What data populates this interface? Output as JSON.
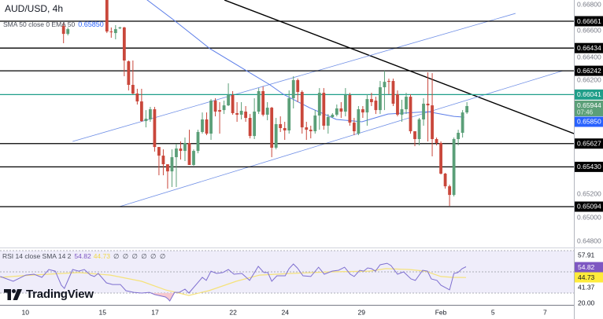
{
  "header": {
    "symbol_title": "AUD/USD, 4h",
    "ma_legend_label": "SMA 50 close 0 EMA 50",
    "ma_legend_value": "0.65850",
    "rsi_legend_label": "RSI 14 close SMA 14 2",
    "rsi_legend_value": "54.82",
    "rsi_legend_sma_value": "44.73",
    "rsi_legend_extras": "∅ ∅ ∅ ∅ ∅ ∅"
  },
  "branding": {
    "logo_text": "TradingView"
  },
  "colors": {
    "up": "#5b9f78",
    "down": "#c9473b",
    "ma": "#5b7de8",
    "channel": "#6f8fe6",
    "trendline": "#000000",
    "level": "#000000",
    "level_teal": "#1f9e89",
    "rsi_line": "#7e6fd0",
    "rsi_sma": "#f5e27a",
    "rsi_band": "#efedfa",
    "current_price": "#5b9f78",
    "ma_badge": "#2962ff",
    "rsi_badge": "#7e57c2",
    "rsi_sma_badge": "#ffeb3b"
  },
  "chart_data": {
    "type": "candlestick",
    "title": "AUD/USD, 4h",
    "ylim": [
      0.6475,
      0.6684
    ],
    "price_ticks": [
      "0.66800",
      "0.66600",
      "0.66400",
      "0.66200",
      "0.65200",
      "0.65000",
      "0.64800"
    ],
    "time_ticks": [
      {
        "bar": -8.8,
        "label": "10"
      },
      {
        "bar": 9,
        "label": "15"
      },
      {
        "bar": 21.1,
        "label": "17"
      },
      {
        "bar": 39.1,
        "label": "22"
      },
      {
        "bar": 51.1,
        "label": "24"
      },
      {
        "bar": 68.7,
        "label": "29"
      },
      {
        "bar": 87,
        "label": "Feb"
      },
      {
        "bar": 99,
        "label": "5"
      },
      {
        "bar": 111,
        "label": "7"
      }
    ],
    "candles_ohlc": [
      [
        0.66621,
        0.66647,
        0.66475,
        0.66554
      ],
      [
        0.66554,
        0.66608,
        0.66541,
        0.66594
      ],
      null,
      null,
      null,
      null,
      null,
      null,
      null,
      null,
      [
        0.6694,
        0.66973,
        0.66561,
        0.66574
      ],
      [
        0.66574,
        0.66608,
        0.66521,
        0.66568
      ],
      [
        0.66561,
        0.66628,
        0.66508,
        0.66594
      ],
      [
        0.66601,
        0.66615,
        0.66594,
        0.66608
      ],
      [
        0.66608,
        0.66614,
        0.66196,
        0.66329
      ],
      [
        0.66322,
        0.66329,
        0.66076,
        0.66123
      ],
      [
        0.66123,
        0.66329,
        0.66043,
        0.6605
      ],
      [
        0.6605,
        0.6609,
        0.65957,
        0.65983
      ],
      [
        0.65983,
        0.6609,
        0.65811,
        0.65817
      ],
      [
        0.65817,
        0.6591,
        0.65764,
        0.65837
      ],
      [
        0.65831,
        0.65937,
        0.65811,
        0.65917
      ],
      [
        0.65917,
        0.65937,
        0.65559,
        0.65598
      ],
      [
        0.65598,
        0.65598,
        0.65359,
        0.65525
      ],
      [
        0.65525,
        0.65578,
        0.65359,
        0.65452
      ],
      [
        0.65452,
        0.65452,
        0.65246,
        0.65392
      ],
      [
        0.65392,
        0.65578,
        0.6526,
        0.65512
      ],
      [
        0.65512,
        0.65625,
        0.6526,
        0.65585
      ],
      [
        0.65585,
        0.65645,
        0.65492,
        0.65565
      ],
      [
        0.65565,
        0.65678,
        0.65479,
        0.65632
      ],
      [
        0.65632,
        0.65744,
        0.65446,
        0.65446
      ],
      [
        0.65446,
        0.65578,
        0.65439,
        0.65565
      ],
      [
        0.65565,
        0.65744,
        0.65545,
        0.65725
      ],
      [
        0.65725,
        0.6589,
        0.65711,
        0.65831
      ],
      [
        0.65831,
        0.6589,
        0.65698,
        0.65711
      ],
      [
        0.65711,
        0.66003,
        0.65658,
        0.6599
      ],
      [
        0.6599,
        0.6601,
        0.65857,
        0.65897
      ],
      [
        0.6591,
        0.65977,
        0.65711,
        0.65897
      ],
      [
        0.6591,
        0.6599,
        0.65877,
        0.6595
      ],
      [
        0.6595,
        0.66136,
        0.65944,
        0.66037
      ],
      [
        0.66037,
        0.6607,
        0.65871,
        0.65884
      ],
      [
        0.65884,
        0.65977,
        0.65811,
        0.65871
      ],
      [
        0.65871,
        0.65977,
        0.65831,
        0.65904
      ],
      [
        0.65897,
        0.65944,
        0.65811,
        0.65844
      ],
      [
        0.65844,
        0.65877,
        0.65671,
        0.65691
      ],
      [
        0.65691,
        0.6601,
        0.65665,
        0.65897
      ],
      [
        0.65897,
        0.66096,
        0.65877,
        0.6607
      ],
      [
        0.6607,
        0.6611,
        0.65857,
        0.65871
      ],
      [
        0.65871,
        0.65977,
        0.65824,
        0.6593
      ],
      [
        0.6593,
        0.65937,
        0.65512,
        0.65592
      ],
      [
        0.65592,
        0.65844,
        0.65578,
        0.65791
      ],
      [
        0.65791,
        0.65857,
        0.65725,
        0.65758
      ],
      [
        0.65758,
        0.65811,
        0.65658,
        0.65738
      ],
      [
        0.65738,
        0.66076,
        0.65711,
        0.6601
      ],
      [
        0.6601,
        0.66196,
        0.65924,
        0.66163
      ],
      [
        0.66163,
        0.66176,
        0.65977,
        0.66063
      ],
      [
        0.66063,
        0.66076,
        0.65711,
        0.65764
      ],
      [
        0.65764,
        0.65811,
        0.65658,
        0.65744
      ],
      [
        0.65744,
        0.65778,
        0.65671,
        0.65731
      ],
      [
        0.65731,
        0.6591,
        0.65711,
        0.65864
      ],
      [
        0.65864,
        0.66096,
        0.65744,
        0.66056
      ],
      [
        0.66056,
        0.66096,
        0.65744,
        0.65778
      ],
      [
        0.65778,
        0.65877,
        0.65711,
        0.65851
      ],
      [
        0.65851,
        0.65884,
        0.65844,
        0.65871
      ],
      [
        0.65871,
        0.65957,
        0.65857,
        0.65924
      ],
      [
        0.65924,
        0.65977,
        0.65844,
        0.65897
      ],
      [
        0.65897,
        0.66096,
        0.65857,
        0.66037
      ],
      [
        0.66037,
        0.66056,
        0.65778,
        0.65804
      ],
      [
        0.65804,
        0.65844,
        0.65698,
        0.65731
      ],
      [
        0.65711,
        0.65944,
        0.65698,
        0.65917
      ],
      [
        0.65917,
        0.65944,
        0.65844,
        0.6589
      ],
      [
        0.6589,
        0.66043,
        0.65778,
        0.66003
      ],
      [
        0.66003,
        0.66056,
        0.65944,
        0.65977
      ],
      [
        0.6599,
        0.66023,
        0.65877,
        0.6591
      ],
      [
        0.6591,
        0.66156,
        0.65877,
        0.66103
      ],
      [
        0.66103,
        0.66242,
        0.6591,
        0.66149
      ],
      [
        0.66156,
        0.66176,
        0.66043,
        0.66149
      ],
      [
        0.66156,
        0.66176,
        0.65944,
        0.65964
      ],
      [
        0.66043,
        0.66076,
        0.65857,
        0.65871
      ],
      [
        0.65871,
        0.65997,
        0.65811,
        0.65917
      ],
      [
        0.65917,
        0.66056,
        0.65877,
        0.66023
      ],
      [
        0.66023,
        0.66043,
        0.65711,
        0.65731
      ],
      [
        0.65731,
        0.65731,
        0.65605,
        0.65665
      ],
      [
        0.65665,
        0.65844,
        0.65612,
        0.65831
      ],
      [
        0.65831,
        0.6601,
        0.65778,
        0.65964
      ],
      [
        0.65964,
        0.66229,
        0.65645,
        0.6595
      ],
      [
        0.6595,
        0.66222,
        0.65519,
        0.65665
      ],
      [
        0.65665,
        0.65678,
        0.65612,
        0.65632
      ],
      [
        0.65632,
        0.65645,
        0.65366,
        0.65373
      ],
      [
        0.65373,
        0.65379,
        0.65246,
        0.65266
      ],
      [
        0.65266,
        0.6528,
        0.651,
        0.65193
      ],
      [
        0.65193,
        0.65678,
        0.6518,
        0.65665
      ],
      [
        0.65665,
        0.65744,
        0.65612,
        0.65718
      ],
      [
        0.65718,
        0.6591,
        0.65678,
        0.6589
      ],
      [
        0.6589,
        0.65977,
        0.65877,
        0.65944
      ]
    ],
    "current_price": {
      "label": "0.65944",
      "countdown": "07:46"
    },
    "levels": [
      {
        "price": 0.66661,
        "label": "0.66661",
        "style": "black"
      },
      {
        "price": 0.66434,
        "label": "0.66434",
        "style": "black"
      },
      {
        "price": 0.66242,
        "label": "0.66242",
        "style": "black"
      },
      {
        "price": 0.66041,
        "label": "0.66041",
        "style": "teal"
      },
      {
        "price": 0.65627,
        "label": "0.65627",
        "style": "black"
      },
      {
        "price": 0.6543,
        "label": "0.65430",
        "style": "black"
      },
      {
        "price": 0.65094,
        "label": "0.65094",
        "style": "black"
      }
    ],
    "trendlines": [
      {
        "kind": "resistance",
        "from": [
          37.1,
          0.6684
        ],
        "to": [
          117.7,
          0.65711
        ]
      },
      {
        "kind": "channel-upper",
        "from": [
          2.1,
          0.65645
        ],
        "to": [
          104.2,
          0.66727
        ]
      },
      {
        "kind": "channel-lower",
        "from": [
          12.9,
          0.65094
        ],
        "to": [
          115.1,
          0.66242
        ]
      }
    ],
    "moving_average": {
      "label": "SMA 50 close 0 EMA 50",
      "value_label": "0.65850",
      "points": [
        [
          17.5,
          0.669
        ],
        [
          19.3,
          0.6684
        ],
        [
          25.3,
          0.66674
        ],
        [
          33.8,
          0.66428
        ],
        [
          42.2,
          0.66242
        ],
        [
          47.6,
          0.66123
        ],
        [
          50.7,
          0.66043
        ],
        [
          56.7,
          0.6593
        ],
        [
          62.9,
          0.65831
        ],
        [
          68.8,
          0.65811
        ],
        [
          74.8,
          0.65877
        ],
        [
          84,
          0.65897
        ],
        [
          87,
          0.65877
        ],
        [
          90,
          0.65857
        ],
        [
          92.4,
          0.6585
        ]
      ]
    },
    "rsi": {
      "label": "RSI 14 close SMA 14 2",
      "value_label": "54.82",
      "sma_value_label": "44.73",
      "ylim": [
        18.9,
        73
      ],
      "band_levels": [
        70,
        50,
        30
      ],
      "axis_labels": [
        "57.91",
        "54.82",
        "44.73",
        "41.37",
        "20.00"
      ],
      "points": [
        [
          -14.6,
          45.6
        ],
        [
          -11.6,
          41.1
        ],
        [
          -8.7,
          47.0
        ],
        [
          -6.8,
          47.8
        ],
        [
          -5.0,
          44.8
        ],
        [
          -3.4,
          52.2
        ],
        [
          -1.9,
          50.7
        ],
        [
          -0.5,
          37.4
        ],
        [
          0.2,
          34.4
        ],
        [
          2.1,
          52.2
        ],
        [
          3.5,
          50.7
        ],
        [
          4.8,
          52.2
        ],
        [
          6.2,
          47.0
        ],
        [
          7.1,
          45.6
        ],
        [
          8.0,
          48.5
        ],
        [
          9.9,
          39.6
        ],
        [
          11.3,
          38.1
        ],
        [
          13.1,
          38.1
        ],
        [
          14.4,
          32.2
        ],
        [
          16.2,
          30.7
        ],
        [
          18.0,
          30.0
        ],
        [
          19.8,
          30.7
        ],
        [
          21.1,
          28.5
        ],
        [
          23.5,
          26.3
        ],
        [
          24.0,
          24.8
        ],
        [
          24.5,
          22.6
        ],
        [
          25.6,
          30.7
        ],
        [
          26.7,
          30.7
        ],
        [
          28.0,
          33.7
        ],
        [
          28.9,
          30.0
        ],
        [
          32.0,
          44.8
        ],
        [
          32.9,
          41.9
        ],
        [
          34.0,
          50.7
        ],
        [
          35.3,
          48.5
        ],
        [
          36.7,
          49.3
        ],
        [
          38.0,
          52.2
        ],
        [
          39.3,
          47.8
        ],
        [
          41.1,
          48.5
        ],
        [
          42.9,
          41.9
        ],
        [
          44.9,
          55.2
        ],
        [
          46.2,
          49.3
        ],
        [
          47.1,
          49.3
        ],
        [
          48.0,
          41.1
        ],
        [
          49.2,
          46.3
        ],
        [
          51.1,
          46.3
        ],
        [
          52.0,
          53.0
        ],
        [
          53.0,
          57.4
        ],
        [
          53.9,
          53.7
        ],
        [
          55.2,
          46.3
        ],
        [
          57.0,
          45.6
        ],
        [
          58.8,
          54.4
        ],
        [
          60.1,
          47.8
        ],
        [
          61.9,
          50.7
        ],
        [
          63.4,
          51.5
        ],
        [
          64.8,
          54.4
        ],
        [
          66.1,
          47.8
        ],
        [
          67.0,
          45.6
        ],
        [
          68.3,
          51.5
        ],
        [
          69.2,
          50.7
        ],
        [
          70.1,
          53.7
        ],
        [
          71.0,
          53.0
        ],
        [
          71.9,
          50.7
        ],
        [
          73.0,
          56.7
        ],
        [
          74.6,
          58.1
        ],
        [
          75.5,
          55.9
        ],
        [
          77.0,
          47.8
        ],
        [
          78.4,
          50.0
        ],
        [
          80.1,
          43.3
        ],
        [
          81.1,
          41.9
        ],
        [
          82.8,
          51.5
        ],
        [
          83.9,
          50.7
        ],
        [
          84.8,
          43.3
        ],
        [
          86.1,
          41.9
        ],
        [
          87.0,
          37.4
        ],
        [
          89.0,
          33.0
        ],
        [
          90.0,
          48.5
        ],
        [
          90.9,
          49.3
        ],
        [
          91.9,
          53.0
        ],
        [
          92.8,
          54.8
        ]
      ],
      "sma_points": [
        [
          -14.6,
          44.8
        ],
        [
          -7.4,
          47.0
        ],
        [
          3.5,
          49.3
        ],
        [
          10.8,
          47.0
        ],
        [
          18.0,
          41.1
        ],
        [
          23.5,
          33.0
        ],
        [
          28.9,
          27.8
        ],
        [
          33.5,
          32.2
        ],
        [
          39.8,
          41.1
        ],
        [
          45.2,
          47.0
        ],
        [
          52.5,
          48.5
        ],
        [
          61.6,
          50.0
        ],
        [
          70.6,
          50.7
        ],
        [
          74.3,
          53.0
        ],
        [
          79.7,
          52.2
        ],
        [
          83.4,
          50.7
        ],
        [
          87.0,
          45.6
        ],
        [
          89.7,
          44.8
        ],
        [
          92.8,
          44.7
        ]
      ]
    }
  }
}
